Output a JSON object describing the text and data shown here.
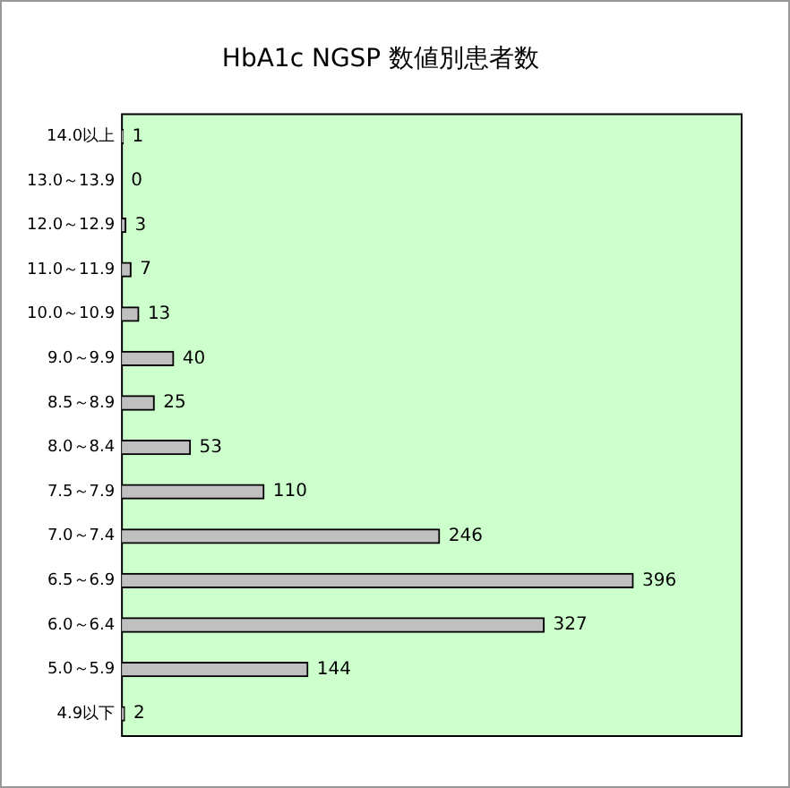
{
  "chart_data": {
    "type": "bar",
    "orientation": "horizontal",
    "title": "HbA1c NGSP 数値別患者数",
    "categories": [
      "14.0以上",
      "13.0～13.9",
      "12.0～12.9",
      "11.0～11.9",
      "10.0～10.9",
      "9.0～9.9",
      "8.5～8.9",
      "8.0～8.4",
      "7.5～7.9",
      "7.0～7.4",
      "6.5～6.9",
      "6.0～6.4",
      "5.0～5.9",
      "4.9以下"
    ],
    "values": [
      1,
      0,
      3,
      7,
      13,
      40,
      25,
      53,
      110,
      246,
      396,
      327,
      144,
      2
    ],
    "color": "#c0c0c0",
    "xlim": [
      0,
      480
    ],
    "tick_labels": "y",
    "legend": false,
    "data_labels": true
  }
}
